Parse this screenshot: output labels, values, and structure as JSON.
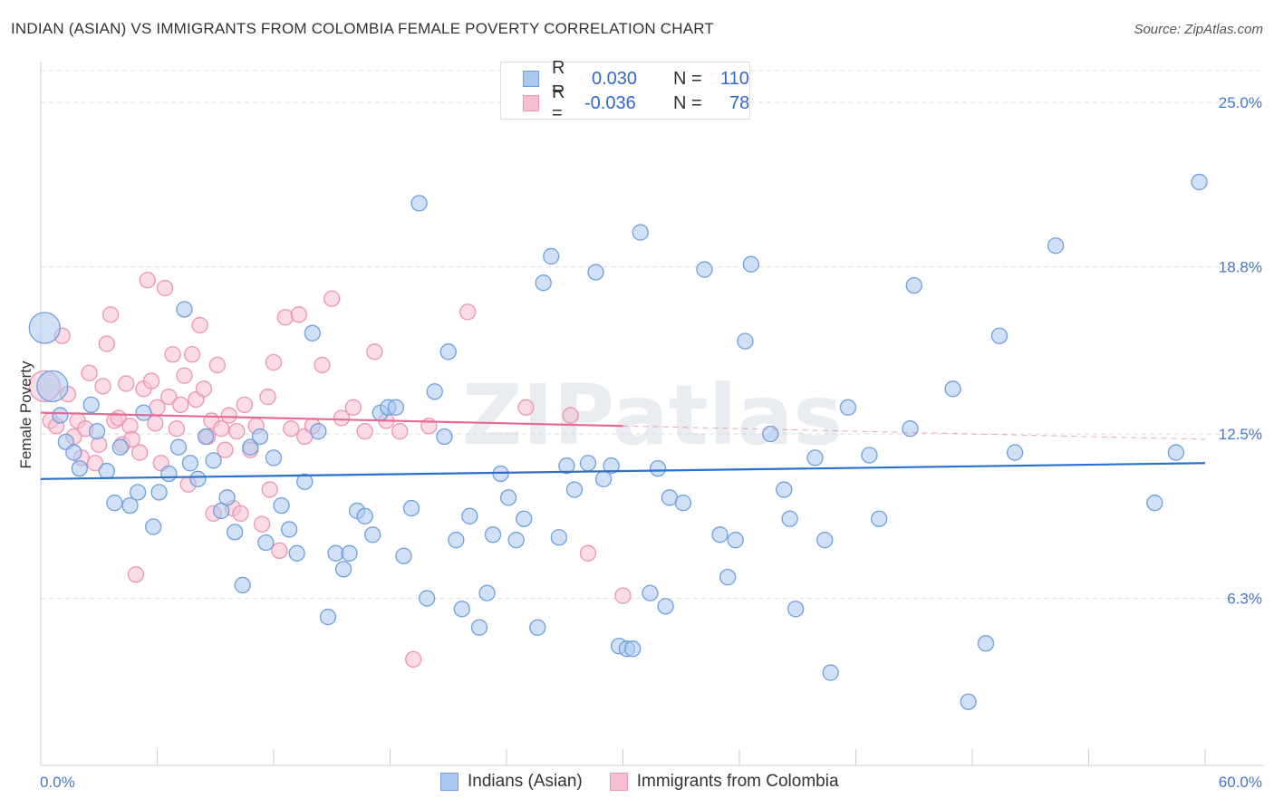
{
  "title": "INDIAN (ASIAN) VS IMMIGRANTS FROM COLOMBIA FEMALE POVERTY CORRELATION CHART",
  "source": "Source: ZipAtlas.com",
  "watermark": "ZIPatlas",
  "legend": {
    "rows": [
      {
        "r_label": "R =",
        "r_value": "0.030",
        "n_label": "N =",
        "n_value": "110"
      },
      {
        "r_label": "R =",
        "r_value": "-0.036",
        "n_label": "N =",
        "n_value": "78"
      }
    ]
  },
  "bottom_legend": {
    "series1": "Indians (Asian)",
    "series2": "Immigrants from Colombia"
  },
  "chart_data": {
    "type": "scatter",
    "title": "INDIAN (ASIAN) VS IMMIGRANTS FROM COLOMBIA FEMALE POVERTY CORRELATION CHART",
    "xlabel": "",
    "ylabel": "Female Poverty",
    "xlim": [
      0,
      60
    ],
    "ylim": [
      0,
      26.2
    ],
    "x_tick_labels": [
      "0.0%",
      "60.0%"
    ],
    "y_ticks": [
      6.3,
      12.5,
      18.8,
      25.0
    ],
    "y_tick_labels": [
      "6.3%",
      "12.5%",
      "18.8%",
      "25.0%"
    ],
    "colors": {
      "series1_fill": "#aac8f0",
      "series1_stroke": "#6f9fdd",
      "series1_line": "#2d6fcc",
      "series2_fill": "#f7bfd2",
      "series2_stroke": "#ec94b4",
      "series2_line": "#e46b95"
    },
    "series": [
      {
        "name": "Indians (Asian)",
        "trend": [
          [
            0,
            10.8
          ],
          [
            60,
            11.4
          ]
        ],
        "points": [
          [
            0.2,
            16.5,
            1
          ],
          [
            0.6,
            14.3,
            1
          ],
          [
            1.0,
            13.2,
            0
          ],
          [
            1.3,
            12.2,
            0
          ],
          [
            1.7,
            11.8,
            0
          ],
          [
            2.0,
            11.2,
            0
          ],
          [
            2.6,
            13.6,
            0
          ],
          [
            2.9,
            12.6,
            0
          ],
          [
            3.4,
            11.1,
            0
          ],
          [
            3.8,
            9.9,
            0
          ],
          [
            4.1,
            12.0,
            0
          ],
          [
            4.6,
            9.8,
            0
          ],
          [
            5.0,
            10.3,
            0
          ],
          [
            5.3,
            13.3,
            0
          ],
          [
            5.8,
            9.0,
            0
          ],
          [
            6.1,
            10.3,
            0
          ],
          [
            6.6,
            11.0,
            0
          ],
          [
            7.1,
            12.0,
            0
          ],
          [
            7.4,
            17.2,
            0
          ],
          [
            7.7,
            11.4,
            0
          ],
          [
            8.1,
            10.8,
            0
          ],
          [
            8.5,
            12.4,
            0
          ],
          [
            8.9,
            11.5,
            0
          ],
          [
            9.3,
            9.6,
            0
          ],
          [
            9.6,
            10.1,
            0
          ],
          [
            10.0,
            8.8,
            0
          ],
          [
            10.4,
            6.8,
            0
          ],
          [
            10.8,
            12.0,
            0
          ],
          [
            11.3,
            12.4,
            0
          ],
          [
            11.6,
            8.4,
            0
          ],
          [
            12.0,
            11.6,
            0
          ],
          [
            12.4,
            9.8,
            0
          ],
          [
            12.8,
            8.9,
            0
          ],
          [
            13.2,
            8.0,
            0
          ],
          [
            13.6,
            10.7,
            0
          ],
          [
            14.0,
            16.3,
            0
          ],
          [
            14.3,
            12.6,
            0
          ],
          [
            14.8,
            5.6,
            0
          ],
          [
            15.2,
            8.0,
            0
          ],
          [
            15.6,
            7.4,
            0
          ],
          [
            15.9,
            8.0,
            0
          ],
          [
            16.3,
            9.6,
            0
          ],
          [
            16.7,
            9.4,
            0
          ],
          [
            17.1,
            8.7,
            0
          ],
          [
            17.5,
            13.3,
            0
          ],
          [
            17.9,
            13.5,
            0
          ],
          [
            18.3,
            13.5,
            0
          ],
          [
            18.7,
            7.9,
            0
          ],
          [
            19.1,
            9.7,
            0
          ],
          [
            19.5,
            21.2,
            0
          ],
          [
            19.9,
            6.3,
            0
          ],
          [
            20.3,
            14.1,
            0
          ],
          [
            20.8,
            12.4,
            0
          ],
          [
            21.0,
            15.6,
            0
          ],
          [
            21.4,
            8.5,
            0
          ],
          [
            21.7,
            5.9,
            0
          ],
          [
            22.1,
            9.4,
            0
          ],
          [
            22.6,
            5.2,
            0
          ],
          [
            23.0,
            6.5,
            0
          ],
          [
            23.3,
            8.7,
            0
          ],
          [
            23.7,
            11.0,
            0
          ],
          [
            24.1,
            10.1,
            0
          ],
          [
            24.5,
            8.5,
            0
          ],
          [
            24.9,
            9.3,
            0
          ],
          [
            25.6,
            5.2,
            0
          ],
          [
            25.9,
            18.2,
            0
          ],
          [
            26.3,
            19.2,
            0
          ],
          [
            26.7,
            8.6,
            0
          ],
          [
            27.1,
            11.3,
            0
          ],
          [
            27.5,
            10.4,
            0
          ],
          [
            28.2,
            11.4,
            0
          ],
          [
            28.6,
            18.6,
            0
          ],
          [
            29.0,
            10.8,
            0
          ],
          [
            29.4,
            11.3,
            0
          ],
          [
            29.8,
            4.5,
            0
          ],
          [
            30.2,
            4.4,
            0
          ],
          [
            30.5,
            4.4,
            0
          ],
          [
            30.9,
            20.1,
            0
          ],
          [
            31.4,
            6.5,
            0
          ],
          [
            31.8,
            11.2,
            0
          ],
          [
            32.2,
            6.0,
            0
          ],
          [
            32.4,
            10.1,
            0
          ],
          [
            33.1,
            9.9,
            0
          ],
          [
            34.2,
            18.7,
            0
          ],
          [
            35.0,
            8.7,
            0
          ],
          [
            35.4,
            7.1,
            0
          ],
          [
            35.8,
            8.5,
            0
          ],
          [
            36.3,
            16.0,
            0
          ],
          [
            36.6,
            18.9,
            0
          ],
          [
            37.6,
            12.5,
            0
          ],
          [
            38.3,
            10.4,
            0
          ],
          [
            38.6,
            9.3,
            0
          ],
          [
            38.9,
            5.9,
            0
          ],
          [
            39.9,
            11.6,
            0
          ],
          [
            40.4,
            8.5,
            0
          ],
          [
            40.7,
            3.5,
            0
          ],
          [
            41.6,
            13.5,
            0
          ],
          [
            42.7,
            11.7,
            0
          ],
          [
            43.2,
            9.3,
            0
          ],
          [
            44.8,
            12.7,
            0
          ],
          [
            45.0,
            18.1,
            0
          ],
          [
            47.0,
            14.2,
            0
          ],
          [
            47.8,
            2.4,
            0
          ],
          [
            48.7,
            4.6,
            0
          ],
          [
            49.4,
            16.2,
            0
          ],
          [
            50.2,
            11.8,
            0
          ],
          [
            52.3,
            19.6,
            0
          ],
          [
            57.4,
            9.9,
            0
          ],
          [
            58.5,
            11.8,
            0
          ],
          [
            59.7,
            22.0,
            0
          ]
        ]
      },
      {
        "name": "Immigrants from Colombia",
        "trend": [
          [
            0,
            13.3
          ],
          [
            30,
            12.8
          ]
        ],
        "trend_dashed": [
          [
            30,
            12.8
          ],
          [
            60,
            12.3
          ]
        ],
        "points": [
          [
            0.2,
            14.3,
            1
          ],
          [
            0.5,
            13.0,
            0
          ],
          [
            0.8,
            12.8,
            0
          ],
          [
            1.1,
            16.2,
            0
          ],
          [
            1.4,
            14.0,
            0
          ],
          [
            1.7,
            12.4,
            0
          ],
          [
            1.9,
            13.0,
            0
          ],
          [
            2.1,
            11.6,
            0
          ],
          [
            2.3,
            12.7,
            0
          ],
          [
            2.5,
            14.8,
            0
          ],
          [
            2.8,
            11.4,
            0
          ],
          [
            3.0,
            12.1,
            0
          ],
          [
            3.2,
            14.3,
            0
          ],
          [
            3.4,
            15.9,
            0
          ],
          [
            3.6,
            17.0,
            0
          ],
          [
            3.8,
            13.0,
            0
          ],
          [
            4.0,
            13.1,
            0
          ],
          [
            4.2,
            12.1,
            0
          ],
          [
            4.4,
            14.4,
            0
          ],
          [
            4.6,
            12.8,
            0
          ],
          [
            4.7,
            12.3,
            0
          ],
          [
            4.9,
            7.2,
            0
          ],
          [
            5.1,
            11.8,
            0
          ],
          [
            5.3,
            14.2,
            0
          ],
          [
            5.5,
            18.3,
            0
          ],
          [
            5.7,
            14.5,
            0
          ],
          [
            5.9,
            12.9,
            0
          ],
          [
            6.0,
            13.5,
            0
          ],
          [
            6.2,
            11.4,
            0
          ],
          [
            6.4,
            18.0,
            0
          ],
          [
            6.6,
            13.9,
            0
          ],
          [
            6.8,
            15.5,
            0
          ],
          [
            7.0,
            12.7,
            0
          ],
          [
            7.2,
            13.6,
            0
          ],
          [
            7.4,
            14.7,
            0
          ],
          [
            7.6,
            10.6,
            0
          ],
          [
            7.8,
            15.5,
            0
          ],
          [
            8.0,
            13.8,
            0
          ],
          [
            8.2,
            16.6,
            0
          ],
          [
            8.4,
            14.2,
            0
          ],
          [
            8.6,
            12.4,
            0
          ],
          [
            8.8,
            13.0,
            0
          ],
          [
            8.9,
            9.5,
            0
          ],
          [
            9.1,
            15.1,
            0
          ],
          [
            9.3,
            12.7,
            0
          ],
          [
            9.5,
            11.9,
            0
          ],
          [
            9.7,
            13.2,
            0
          ],
          [
            9.9,
            9.7,
            0
          ],
          [
            10.1,
            12.6,
            0
          ],
          [
            10.3,
            9.5,
            0
          ],
          [
            10.5,
            13.6,
            0
          ],
          [
            10.8,
            11.9,
            0
          ],
          [
            11.1,
            12.8,
            0
          ],
          [
            11.4,
            9.1,
            0
          ],
          [
            11.7,
            13.9,
            0
          ],
          [
            11.8,
            10.4,
            0
          ],
          [
            12.0,
            15.2,
            0
          ],
          [
            12.3,
            8.1,
            0
          ],
          [
            12.6,
            16.9,
            0
          ],
          [
            12.9,
            12.7,
            0
          ],
          [
            13.3,
            17.0,
            0
          ],
          [
            13.6,
            12.4,
            0
          ],
          [
            14.0,
            12.8,
            0
          ],
          [
            14.5,
            15.1,
            0
          ],
          [
            15.0,
            17.6,
            0
          ],
          [
            15.5,
            13.1,
            0
          ],
          [
            16.1,
            13.5,
            0
          ],
          [
            16.7,
            12.6,
            0
          ],
          [
            17.2,
            15.6,
            0
          ],
          [
            17.8,
            13.0,
            0
          ],
          [
            18.5,
            12.6,
            0
          ],
          [
            19.2,
            4.0,
            0
          ],
          [
            20.0,
            12.8,
            0
          ],
          [
            22.0,
            17.1,
            0
          ],
          [
            25.0,
            13.5,
            0
          ],
          [
            27.3,
            13.2,
            0
          ],
          [
            28.2,
            8.0,
            0
          ],
          [
            30.0,
            6.4,
            0
          ]
        ]
      }
    ]
  }
}
